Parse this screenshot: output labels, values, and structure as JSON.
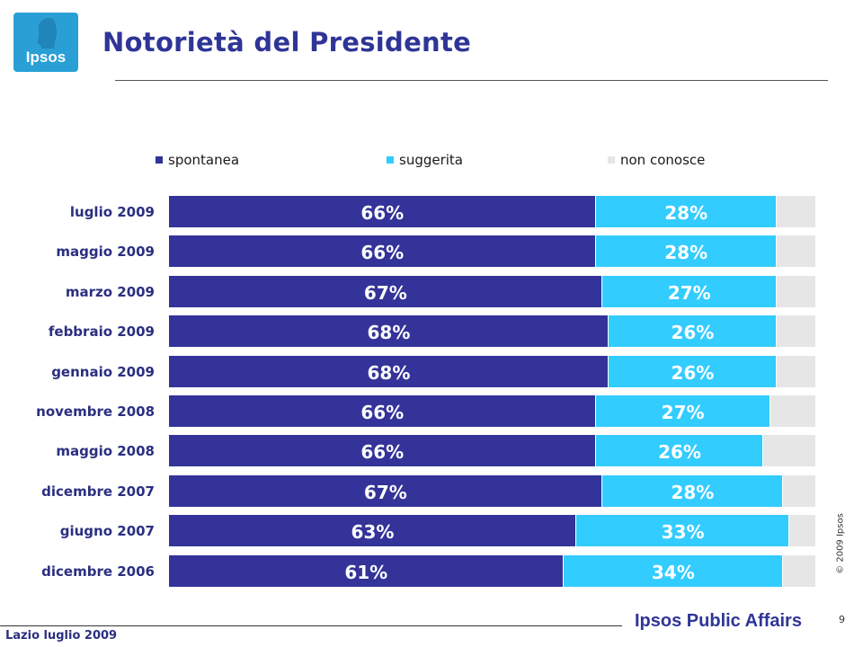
{
  "logo": {
    "text": "Ipsos"
  },
  "title": "Notorietà del Presidente",
  "chart_data": {
    "type": "bar",
    "orientation": "horizontal",
    "stacked": true,
    "categories": [
      "luglio 2009",
      "maggio 2009",
      "marzo 2009",
      "febbraio 2009",
      "gennaio 2009",
      "novembre 2008",
      "maggio 2008",
      "dicembre 2007",
      "giugno 2007",
      "dicembre 2006"
    ],
    "series": [
      {
        "name": "spontanea",
        "color": "#333399",
        "values": [
          66,
          66,
          67,
          68,
          68,
          66,
          66,
          67,
          63,
          61
        ]
      },
      {
        "name": "suggerita",
        "color": "#33ccff",
        "values": [
          28,
          28,
          27,
          26,
          26,
          27,
          26,
          28,
          33,
          34
        ]
      },
      {
        "name": "non conosce",
        "color": "#e6e6e6",
        "values": [
          6,
          6,
          6,
          6,
          6,
          7,
          8,
          5,
          4,
          5
        ]
      }
    ],
    "data_labels": {
      "spontanea": [
        "66%",
        "66%",
        "67%",
        "68%",
        "68%",
        "66%",
        "66%",
        "67%",
        "63%",
        "61%"
      ],
      "suggerita": [
        "28%",
        "28%",
        "27%",
        "26%",
        "26%",
        "27%",
        "26%",
        "28%",
        "33%",
        "34%"
      ]
    },
    "xlim": [
      0,
      100
    ],
    "legend_position": "top",
    "grid": false
  },
  "copyright": "© 2009 Ipsos",
  "footer": {
    "left": "Lazio luglio 2009",
    "brand": "Ipsos Public Affairs",
    "page": "9"
  }
}
